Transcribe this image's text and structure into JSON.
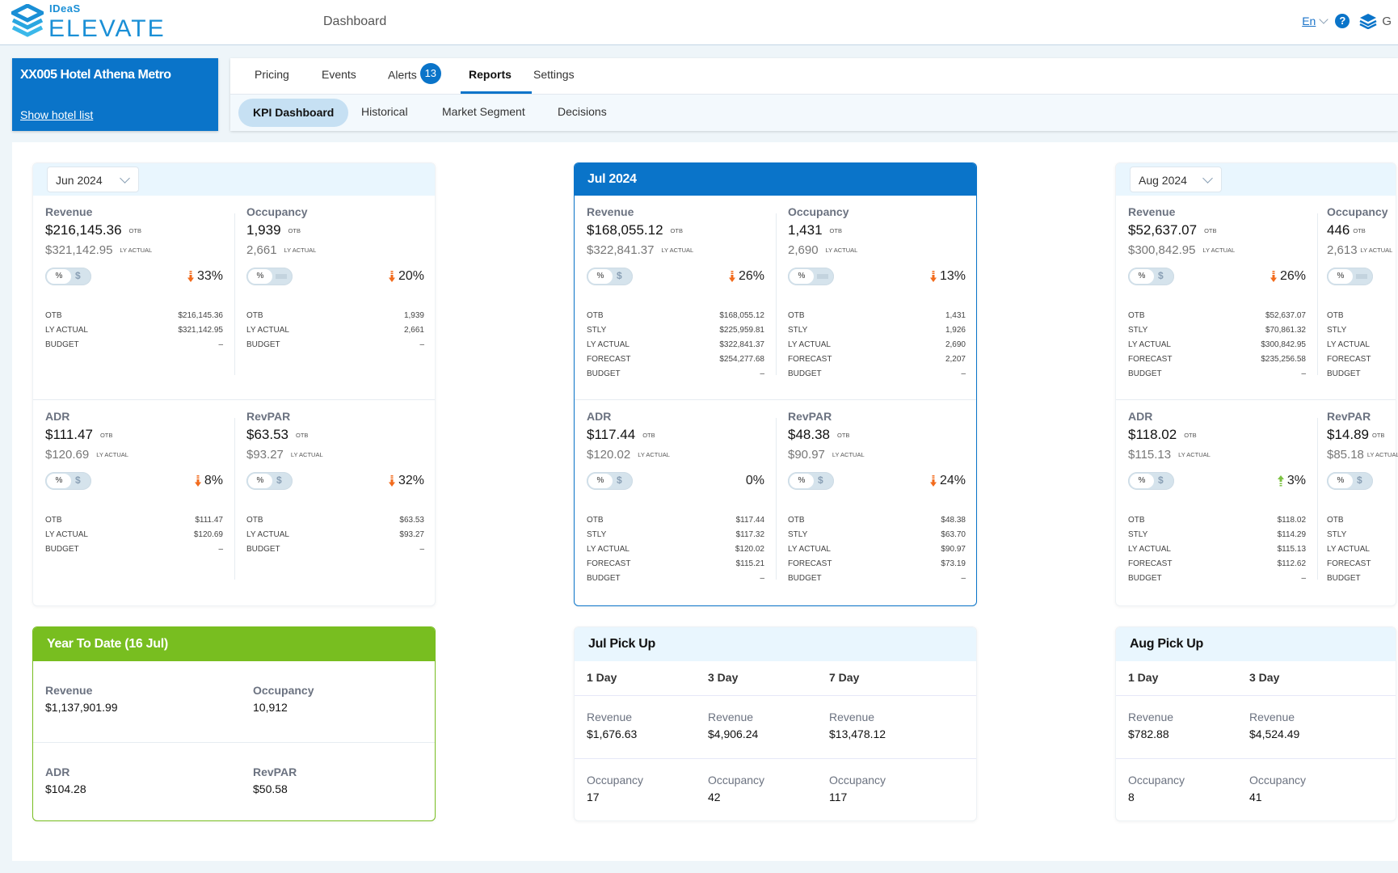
{
  "header": {
    "logo_small": "IDeaS",
    "logo_big": "ELEVATE",
    "page_title": "Dashboard",
    "language": "En",
    "help_icon": "question-circle-icon",
    "layers_icon": "layers-icon",
    "user_initial": "G"
  },
  "hotel": {
    "name": "XX005 Hotel Athena Metro",
    "show_list": "Show hotel list"
  },
  "tabs": [
    {
      "label": "Pricing"
    },
    {
      "label": "Events"
    },
    {
      "label": "Alerts",
      "badge": "13"
    },
    {
      "label": "Reports",
      "active": true
    },
    {
      "label": "Settings"
    }
  ],
  "subtabs": [
    {
      "label": "KPI Dashboard",
      "active": true
    },
    {
      "label": "Historical"
    },
    {
      "label": "Market Segment"
    },
    {
      "label": "Decisions"
    }
  ],
  "colors": {
    "primary": "#0a74c9",
    "ytd_green": "#78be20",
    "down": "#f26b1d",
    "up": "#7cc242"
  },
  "months": [
    {
      "label": "Jun 2024",
      "selector": "dropdown",
      "metrics": [
        {
          "name": "Revenue",
          "otb": "$216,145.36",
          "otb_tag": "OTB",
          "ly": "$321,142.95",
          "ly_tag": "LY ACTUAL",
          "toggle": [
            "%",
            "$"
          ],
          "change": "33%",
          "direction": "down",
          "rows": [
            {
              "label": "OTB",
              "value": "$216,145.36"
            },
            {
              "label": "LY ACTUAL",
              "value": "$321,142.95"
            },
            {
              "label": "BUDGET",
              "value": "–"
            }
          ]
        },
        {
          "name": "Occupancy",
          "otb": "1,939",
          "otb_tag": "OTB",
          "ly": "2,661",
          "ly_tag": "LY ACTUAL",
          "toggle": [
            "%",
            ""
          ],
          "change": "20%",
          "direction": "down",
          "rows": [
            {
              "label": "OTB",
              "value": "1,939"
            },
            {
              "label": "LY ACTUAL",
              "value": "2,661"
            },
            {
              "label": "BUDGET",
              "value": "–"
            }
          ]
        },
        {
          "name": "ADR",
          "otb": "$111.47",
          "otb_tag": "OTB",
          "ly": "$120.69",
          "ly_tag": "LY ACTUAL",
          "toggle": [
            "%",
            "$"
          ],
          "change": "8%",
          "direction": "down",
          "rows": [
            {
              "label": "OTB",
              "value": "$111.47"
            },
            {
              "label": "LY ACTUAL",
              "value": "$120.69"
            },
            {
              "label": "BUDGET",
              "value": "–"
            }
          ]
        },
        {
          "name": "RevPAR",
          "otb": "$63.53",
          "otb_tag": "OTB",
          "ly": "$93.27",
          "ly_tag": "LY ACTUAL",
          "toggle": [
            "%",
            "$"
          ],
          "change": "32%",
          "direction": "down",
          "rows": [
            {
              "label": "OTB",
              "value": "$63.53"
            },
            {
              "label": "LY ACTUAL",
              "value": "$93.27"
            },
            {
              "label": "BUDGET",
              "value": "–"
            }
          ]
        }
      ]
    },
    {
      "label": "Jul 2024",
      "selector": "current",
      "metrics": [
        {
          "name": "Revenue",
          "otb": "$168,055.12",
          "otb_tag": "OTB",
          "ly": "$322,841.37",
          "ly_tag": "LY ACTUAL",
          "toggle": [
            "%",
            "$"
          ],
          "change": "26%",
          "direction": "down",
          "rows": [
            {
              "label": "OTB",
              "value": "$168,055.12"
            },
            {
              "label": "STLY",
              "value": "$225,959.81"
            },
            {
              "label": "LY ACTUAL",
              "value": "$322,841.37"
            },
            {
              "label": "FORECAST",
              "value": "$254,277.68"
            },
            {
              "label": "BUDGET",
              "value": "–"
            }
          ]
        },
        {
          "name": "Occupancy",
          "otb": "1,431",
          "otb_tag": "OTB",
          "ly": "2,690",
          "ly_tag": "LY ACTUAL",
          "toggle": [
            "%",
            ""
          ],
          "change": "13%",
          "direction": "down",
          "rows": [
            {
              "label": "OTB",
              "value": "1,431"
            },
            {
              "label": "STLY",
              "value": "1,926"
            },
            {
              "label": "LY ACTUAL",
              "value": "2,690"
            },
            {
              "label": "FORECAST",
              "value": "2,207"
            },
            {
              "label": "BUDGET",
              "value": "–"
            }
          ]
        },
        {
          "name": "ADR",
          "otb": "$117.44",
          "otb_tag": "OTB",
          "ly": "$120.02",
          "ly_tag": "LY ACTUAL",
          "toggle": [
            "%",
            "$"
          ],
          "change": "0%",
          "direction": "none",
          "rows": [
            {
              "label": "OTB",
              "value": "$117.44"
            },
            {
              "label": "STLY",
              "value": "$117.32"
            },
            {
              "label": "LY ACTUAL",
              "value": "$120.02"
            },
            {
              "label": "FORECAST",
              "value": "$115.21"
            },
            {
              "label": "BUDGET",
              "value": "–"
            }
          ]
        },
        {
          "name": "RevPAR",
          "otb": "$48.38",
          "otb_tag": "OTB",
          "ly": "$90.97",
          "ly_tag": "LY ACTUAL",
          "toggle": [
            "%",
            "$"
          ],
          "change": "24%",
          "direction": "down",
          "rows": [
            {
              "label": "OTB",
              "value": "$48.38"
            },
            {
              "label": "STLY",
              "value": "$63.70"
            },
            {
              "label": "LY ACTUAL",
              "value": "$90.97"
            },
            {
              "label": "FORECAST",
              "value": "$73.19"
            },
            {
              "label": "BUDGET",
              "value": "–"
            }
          ]
        }
      ]
    },
    {
      "label": "Aug 2024",
      "selector": "dropdown",
      "metrics": [
        {
          "name": "Revenue",
          "otb": "$52,637.07",
          "otb_tag": "OTB",
          "ly": "$300,842.95",
          "ly_tag": "LY ACTUAL",
          "toggle": [
            "%",
            "$"
          ],
          "change": "26%",
          "direction": "down",
          "rows": [
            {
              "label": "OTB",
              "value": "$52,637.07"
            },
            {
              "label": "STLY",
              "value": "$70,861.32"
            },
            {
              "label": "LY ACTUAL",
              "value": "$300,842.95"
            },
            {
              "label": "FORECAST",
              "value": "$235,256.58"
            },
            {
              "label": "BUDGET",
              "value": "–"
            }
          ]
        },
        {
          "name": "Occupancy",
          "otb": "446",
          "otb_tag": "OTB",
          "ly": "2,613",
          "ly_tag": "LY ACTUAL",
          "toggle": [
            "%",
            ""
          ],
          "rows": [
            {
              "label": "OTB"
            },
            {
              "label": "STLY"
            },
            {
              "label": "LY ACTUAL"
            },
            {
              "label": "FORECAST"
            },
            {
              "label": "BUDGET"
            }
          ]
        },
        {
          "name": "ADR",
          "otb": "$118.02",
          "otb_tag": "OTB",
          "ly": "$115.13",
          "ly_tag": "LY ACTUAL",
          "toggle": [
            "%",
            "$"
          ],
          "change": "3%",
          "direction": "up",
          "rows": [
            {
              "label": "OTB",
              "value": "$118.02"
            },
            {
              "label": "STLY",
              "value": "$114.29"
            },
            {
              "label": "LY ACTUAL",
              "value": "$115.13"
            },
            {
              "label": "FORECAST",
              "value": "$112.62"
            },
            {
              "label": "BUDGET",
              "value": "–"
            }
          ]
        },
        {
          "name": "RevPAR",
          "otb": "$14.89",
          "otb_tag": "OTB",
          "ly": "$85.18",
          "ly_tag": "LY ACTUAL",
          "toggle": [
            "%",
            "$"
          ],
          "rows": [
            {
              "label": "OTB"
            },
            {
              "label": "STLY"
            },
            {
              "label": "LY ACTUAL"
            },
            {
              "label": "FORECAST"
            },
            {
              "label": "BUDGET"
            }
          ]
        }
      ]
    }
  ],
  "ytd": {
    "title": "Year To Date (16 Jul)",
    "items": [
      {
        "label": "Revenue",
        "value": "$1,137,901.99"
      },
      {
        "label": "Occupancy",
        "value": "10,912"
      },
      {
        "label": "ADR",
        "value": "$104.28"
      },
      {
        "label": "RevPAR",
        "value": "$50.58"
      }
    ]
  },
  "pickups": [
    {
      "title": "Jul Pick Up",
      "columns": [
        {
          "day": "1 Day",
          "rev_label": "Revenue",
          "revenue": "$1,676.63",
          "occ_label": "Occupancy",
          "occupancy": "17"
        },
        {
          "day": "3 Day",
          "rev_label": "Revenue",
          "revenue": "$4,906.24",
          "occ_label": "Occupancy",
          "occupancy": "42"
        },
        {
          "day": "7 Day",
          "rev_label": "Revenue",
          "revenue": "$13,478.12",
          "occ_label": "Occupancy",
          "occupancy": "117"
        }
      ]
    },
    {
      "title": "Aug Pick Up",
      "columns": [
        {
          "day": "1 Day",
          "rev_label": "Revenue",
          "revenue": "$782.88",
          "occ_label": "Occupancy",
          "occupancy": "8"
        },
        {
          "day": "3 Day",
          "rev_label": "Revenue",
          "revenue": "$4,524.49",
          "occ_label": "Occupancy",
          "occupancy": "41"
        }
      ]
    }
  ]
}
